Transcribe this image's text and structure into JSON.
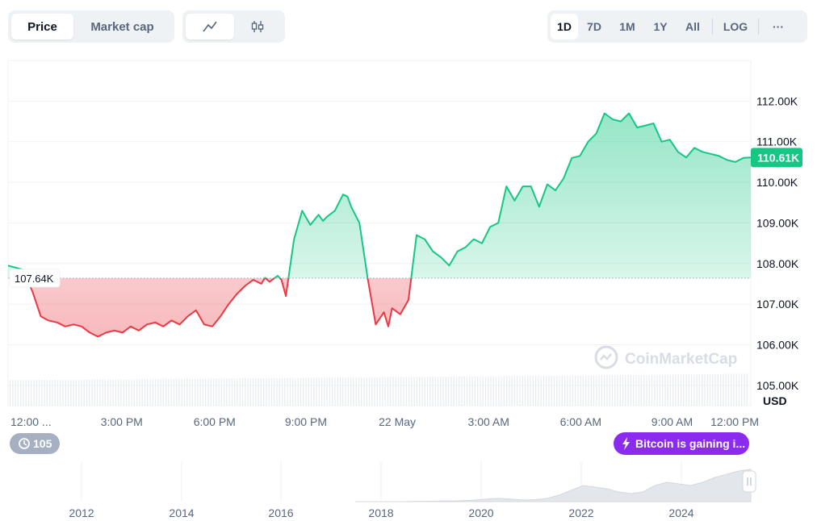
{
  "toolbar": {
    "metric_tabs": [
      "Price",
      "Market cap"
    ],
    "active_metric": "Price",
    "chart_style_icons": [
      "line-chart-icon",
      "candlestick-icon"
    ],
    "ranges": [
      "1D",
      "7D",
      "1M",
      "1Y",
      "All"
    ],
    "active_range": "1D",
    "log_label": "LOG",
    "more_label": "···"
  },
  "chart_data": {
    "type": "area",
    "x_tick_labels": [
      "12:00 ...",
      "3:00 PM",
      "6:00 PM",
      "9:00 PM",
      "22 May",
      "3:00 AM",
      "6:00 AM",
      "9:00 AM",
      "12:00 PM"
    ],
    "y_tick_labels": [
      "112.00K",
      "111.00K",
      "110.00K",
      "109.00K",
      "108.00K",
      "107.00K",
      "106.00K",
      "105.00K"
    ],
    "y_ticks": [
      112000,
      111000,
      110000,
      109000,
      108000,
      107000,
      106000,
      105000
    ],
    "ylim": [
      104500,
      113000
    ],
    "currency_label": "USD",
    "reference_value": 107640,
    "reference_label": "107.64K",
    "current_value": 110610,
    "current_label": "110.61K",
    "up_color": "#16c784",
    "down_color": "#ea3943",
    "x_ticks_t": [
      0.034,
      0.153,
      0.278,
      0.401,
      0.524,
      0.647,
      0.771,
      0.894,
      1.0
    ],
    "x": [
      0.0,
      0.01,
      0.02,
      0.033,
      0.044,
      0.054,
      0.066,
      0.077,
      0.088,
      0.099,
      0.11,
      0.121,
      0.132,
      0.143,
      0.154,
      0.165,
      0.176,
      0.187,
      0.198,
      0.209,
      0.22,
      0.231,
      0.242,
      0.253,
      0.264,
      0.275,
      0.286,
      0.297,
      0.308,
      0.319,
      0.33,
      0.341,
      0.346,
      0.352,
      0.363,
      0.368,
      0.374,
      0.385,
      0.396,
      0.407,
      0.418,
      0.424,
      0.429,
      0.44,
      0.451,
      0.457,
      0.462,
      0.473,
      0.484,
      0.495,
      0.506,
      0.512,
      0.517,
      0.528,
      0.539,
      0.55,
      0.561,
      0.572,
      0.583,
      0.594,
      0.605,
      0.616,
      0.627,
      0.638,
      0.649,
      0.66,
      0.671,
      0.682,
      0.693,
      0.704,
      0.715,
      0.726,
      0.737,
      0.748,
      0.759,
      0.77,
      0.781,
      0.792,
      0.803,
      0.814,
      0.825,
      0.836,
      0.847,
      0.858,
      0.869,
      0.88,
      0.891,
      0.902,
      0.913,
      0.924,
      0.935,
      0.946,
      0.957,
      0.968,
      0.979,
      0.99,
      1.0
    ],
    "y": [
      107950,
      107900,
      107850,
      107300,
      106700,
      106600,
      106550,
      106450,
      106500,
      106450,
      106300,
      106200,
      106300,
      106350,
      106300,
      106450,
      106350,
      106500,
      106550,
      106450,
      106600,
      106500,
      106700,
      106850,
      106500,
      106450,
      106700,
      107000,
      107250,
      107450,
      107600,
      107500,
      107650,
      107550,
      107700,
      107600,
      107200,
      108600,
      109300,
      108950,
      109200,
      109050,
      109150,
      109300,
      109700,
      109650,
      109400,
      109000,
      107650,
      106500,
      106800,
      106450,
      106900,
      106750,
      107100,
      108700,
      108600,
      108300,
      108150,
      107950,
      108300,
      108400,
      108600,
      108500,
      108900,
      109000,
      109900,
      109550,
      109900,
      109900,
      109400,
      109950,
      109800,
      110100,
      110600,
      110650,
      111000,
      111200,
      111700,
      111550,
      111500,
      111700,
      111350,
      111400,
      111450,
      111000,
      111050,
      110750,
      110610,
      110850,
      110750,
      110700,
      110650,
      110550,
      110500,
      110600,
      110610
    ],
    "volume_heights": [
      0.8,
      0.8,
      0.8,
      0.81,
      0.81,
      0.82,
      0.83,
      0.83,
      0.84,
      0.85,
      0.85,
      0.86,
      0.87,
      0.87,
      0.88,
      0.89,
      0.89,
      0.9,
      0.91,
      0.91,
      0.92,
      0.93,
      0.93,
      0.94,
      0.95,
      0.95,
      0.96,
      0.97,
      0.98,
      0.99,
      1.0
    ],
    "brand_watermark": "CoinMarketCap",
    "notes": [
      "105",
      "Bitcoin is gaining i..."
    ],
    "overview_years": [
      "2012",
      "2014",
      "2016",
      "2018",
      "2020",
      "2022",
      "2024"
    ],
    "overview_values": [
      0.0,
      0.0,
      0.0,
      0.0,
      0.0,
      0.01,
      0.01,
      0.02,
      0.02,
      0.03,
      0.05,
      0.08,
      0.1,
      0.08,
      0.05,
      0.06,
      0.1,
      0.2,
      0.35,
      0.5,
      0.45,
      0.4,
      0.3,
      0.25,
      0.3,
      0.5,
      0.6,
      0.55,
      0.5,
      0.6,
      0.75,
      0.85,
      0.95,
      1.0
    ]
  }
}
